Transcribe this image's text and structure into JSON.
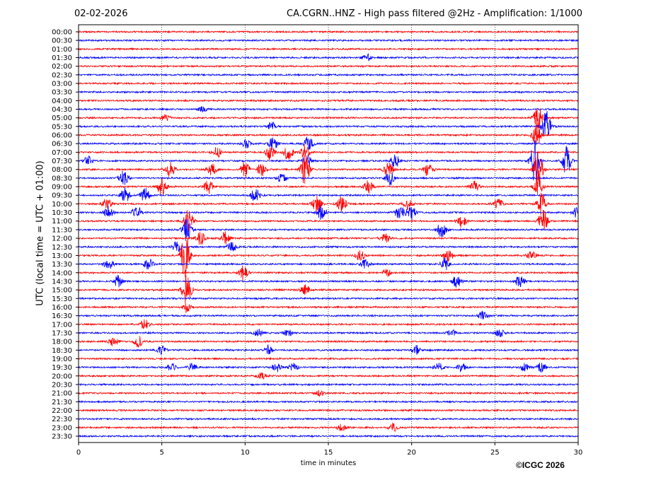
{
  "header": {
    "date": "02-02-2026",
    "title": "CA.CGRN..HNZ - High pass filtered @2Hz - Amplification: 1/1000"
  },
  "footer": {
    "copyright": "©ICGC 2026"
  },
  "colors": {
    "trace_a": "#ff0000",
    "trace_b": "#0000ff",
    "grid": "#000000"
  },
  "chart_data": {
    "type": "line",
    "title": "CA.CGRN..HNZ - High pass filtered @2Hz - Amplification: 1/1000",
    "xlabel": "time in minutes",
    "ylabel": "UTC (local time = UTC + 01:00)",
    "xlim": [
      0,
      30
    ],
    "x_ticks": [
      0,
      5,
      10,
      15,
      20,
      25,
      30
    ],
    "grid": "vertical dotted at 5-minute ticks",
    "traces": [
      {
        "label": "00:00",
        "color": "red",
        "events": []
      },
      {
        "label": "00:30",
        "color": "blue",
        "events": []
      },
      {
        "label": "01:00",
        "color": "red",
        "events": []
      },
      {
        "label": "01:30",
        "color": "blue",
        "events": [
          {
            "x": 17.3,
            "amp": 0.5
          }
        ]
      },
      {
        "label": "02:00",
        "color": "red",
        "events": []
      },
      {
        "label": "02:30",
        "color": "blue",
        "events": []
      },
      {
        "label": "03:00",
        "color": "red",
        "events": []
      },
      {
        "label": "03:30",
        "color": "blue",
        "events": []
      },
      {
        "label": "04:00",
        "color": "red",
        "events": []
      },
      {
        "label": "04:30",
        "color": "blue",
        "events": [
          {
            "x": 7.5,
            "amp": 0.4
          }
        ]
      },
      {
        "label": "05:00",
        "color": "red",
        "events": [
          {
            "x": 5.2,
            "amp": 0.4
          },
          {
            "x": 27.6,
            "amp": 1.5
          }
        ]
      },
      {
        "label": "05:30",
        "color": "blue",
        "events": [
          {
            "x": 11.6,
            "amp": 0.5
          },
          {
            "x": 28.1,
            "amp": 2.0
          }
        ]
      },
      {
        "label": "06:00",
        "color": "red",
        "events": [
          {
            "x": 27.5,
            "amp": 1.5
          }
        ]
      },
      {
        "label": "06:30",
        "color": "blue",
        "events": [
          {
            "x": 10.1,
            "amp": 0.6
          },
          {
            "x": 13.8,
            "amp": 1.0
          },
          {
            "x": 11.7,
            "amp": 1.0
          }
        ]
      },
      {
        "label": "07:00",
        "color": "red",
        "events": [
          {
            "x": 8.3,
            "amp": 0.7
          },
          {
            "x": 11.5,
            "amp": 1.0
          },
          {
            "x": 12.6,
            "amp": 1.0
          },
          {
            "x": 13.6,
            "amp": 1.0
          }
        ]
      },
      {
        "label": "07:30",
        "color": "blue",
        "events": [
          {
            "x": 0.6,
            "amp": 0.6
          },
          {
            "x": 13.7,
            "amp": 0.8
          },
          {
            "x": 19.0,
            "amp": 0.9
          },
          {
            "x": 27.4,
            "amp": 3.0
          },
          {
            "x": 29.3,
            "amp": 2.0
          }
        ]
      },
      {
        "label": "08:00",
        "color": "red",
        "events": [
          {
            "x": 5.5,
            "amp": 1.0
          },
          {
            "x": 8.0,
            "amp": 0.8
          },
          {
            "x": 10.0,
            "amp": 1.0
          },
          {
            "x": 11.0,
            "amp": 0.9
          },
          {
            "x": 13.6,
            "amp": 2.0
          },
          {
            "x": 18.6,
            "amp": 1.0
          },
          {
            "x": 21.0,
            "amp": 0.9
          },
          {
            "x": 27.6,
            "amp": 2.5
          }
        ]
      },
      {
        "label": "08:30",
        "color": "blue",
        "events": [
          {
            "x": 2.7,
            "amp": 1.0
          },
          {
            "x": 12.2,
            "amp": 0.6
          },
          {
            "x": 18.7,
            "amp": 1.0
          }
        ]
      },
      {
        "label": "09:00",
        "color": "red",
        "events": [
          {
            "x": 5.0,
            "amp": 1.2
          },
          {
            "x": 7.8,
            "amp": 1.0
          },
          {
            "x": 17.4,
            "amp": 0.8
          },
          {
            "x": 23.8,
            "amp": 0.8
          },
          {
            "x": 27.6,
            "amp": 1.2
          }
        ]
      },
      {
        "label": "09:30",
        "color": "blue",
        "events": [
          {
            "x": 2.8,
            "amp": 1.0
          },
          {
            "x": 4.0,
            "amp": 0.9
          },
          {
            "x": 10.6,
            "amp": 1.0
          }
        ]
      },
      {
        "label": "10:00",
        "color": "red",
        "events": [
          {
            "x": 1.7,
            "amp": 0.7
          },
          {
            "x": 15.8,
            "amp": 1.0
          },
          {
            "x": 14.3,
            "amp": 1.2
          },
          {
            "x": 19.8,
            "amp": 0.7
          },
          {
            "x": 25.2,
            "amp": 0.7
          },
          {
            "x": 27.8,
            "amp": 1.5
          }
        ]
      },
      {
        "label": "10:30",
        "color": "blue",
        "events": [
          {
            "x": 1.8,
            "amp": 0.8
          },
          {
            "x": 3.5,
            "amp": 1.0
          },
          {
            "x": 14.6,
            "amp": 1.0
          },
          {
            "x": 19.3,
            "amp": 1.0
          },
          {
            "x": 20.0,
            "amp": 1.0
          },
          {
            "x": 29.9,
            "amp": 0.6
          }
        ]
      },
      {
        "label": "11:00",
        "color": "red",
        "events": [
          {
            "x": 6.6,
            "amp": 1.5
          },
          {
            "x": 23.0,
            "amp": 0.8
          },
          {
            "x": 27.9,
            "amp": 1.5
          }
        ]
      },
      {
        "label": "11:30",
        "color": "blue",
        "events": [
          {
            "x": 6.5,
            "amp": 1.5
          },
          {
            "x": 21.8,
            "amp": 1.0
          }
        ]
      },
      {
        "label": "12:00",
        "color": "red",
        "events": [
          {
            "x": 7.3,
            "amp": 1.0
          },
          {
            "x": 8.8,
            "amp": 0.8
          },
          {
            "x": 18.4,
            "amp": 0.6
          }
        ]
      },
      {
        "label": "12:30",
        "color": "blue",
        "events": [
          {
            "x": 5.9,
            "amp": 0.7
          },
          {
            "x": 9.2,
            "amp": 0.6
          }
        ]
      },
      {
        "label": "13:00",
        "color": "red",
        "events": [
          {
            "x": 6.4,
            "amp": 3.0
          },
          {
            "x": 16.9,
            "amp": 0.7
          },
          {
            "x": 22.2,
            "amp": 0.8
          },
          {
            "x": 27.2,
            "amp": 0.6
          }
        ]
      },
      {
        "label": "13:30",
        "color": "blue",
        "events": [
          {
            "x": 1.8,
            "amp": 0.8
          },
          {
            "x": 4.2,
            "amp": 0.7
          },
          {
            "x": 17.2,
            "amp": 0.6
          },
          {
            "x": 22.0,
            "amp": 0.8
          }
        ]
      },
      {
        "label": "14:00",
        "color": "red",
        "events": [
          {
            "x": 9.9,
            "amp": 1.0
          },
          {
            "x": 18.5,
            "amp": 0.5
          }
        ]
      },
      {
        "label": "14:30",
        "color": "blue",
        "events": [
          {
            "x": 2.4,
            "amp": 0.8
          },
          {
            "x": 26.5,
            "amp": 0.8
          },
          {
            "x": 22.7,
            "amp": 0.8
          }
        ]
      },
      {
        "label": "15:00",
        "color": "red",
        "events": [
          {
            "x": 13.6,
            "amp": 0.7
          },
          {
            "x": 6.5,
            "amp": 2.0
          }
        ]
      },
      {
        "label": "15:30",
        "color": "blue",
        "events": []
      },
      {
        "label": "16:00",
        "color": "red",
        "events": [
          {
            "x": 6.5,
            "amp": 0.7
          }
        ]
      },
      {
        "label": "16:30",
        "color": "blue",
        "events": [
          {
            "x": 24.3,
            "amp": 0.6
          }
        ]
      },
      {
        "label": "17:00",
        "color": "red",
        "events": [
          {
            "x": 4.0,
            "amp": 0.7
          }
        ]
      },
      {
        "label": "17:30",
        "color": "blue",
        "events": [
          {
            "x": 10.8,
            "amp": 0.5
          },
          {
            "x": 12.6,
            "amp": 0.5
          },
          {
            "x": 22.4,
            "amp": 0.4
          },
          {
            "x": 25.3,
            "amp": 0.5
          }
        ]
      },
      {
        "label": "18:00",
        "color": "red",
        "events": [
          {
            "x": 2.1,
            "amp": 0.6
          },
          {
            "x": 3.6,
            "amp": 0.7
          }
        ]
      },
      {
        "label": "18:30",
        "color": "blue",
        "events": [
          {
            "x": 5.0,
            "amp": 0.6
          },
          {
            "x": 11.4,
            "amp": 0.6
          },
          {
            "x": 20.3,
            "amp": 0.6
          }
        ]
      },
      {
        "label": "19:00",
        "color": "red",
        "events": []
      },
      {
        "label": "19:30",
        "color": "blue",
        "events": [
          {
            "x": 5.6,
            "amp": 0.5
          },
          {
            "x": 6.8,
            "amp": 0.5
          },
          {
            "x": 11.9,
            "amp": 0.6
          },
          {
            "x": 12.9,
            "amp": 0.5
          },
          {
            "x": 21.6,
            "amp": 0.6
          },
          {
            "x": 23.0,
            "amp": 0.6
          },
          {
            "x": 26.8,
            "amp": 0.5
          },
          {
            "x": 27.8,
            "amp": 0.6
          }
        ]
      },
      {
        "label": "20:00",
        "color": "red",
        "events": [
          {
            "x": 11.0,
            "amp": 0.4
          }
        ]
      },
      {
        "label": "20:30",
        "color": "blue",
        "events": []
      },
      {
        "label": "21:00",
        "color": "red",
        "events": [
          {
            "x": 14.5,
            "amp": 0.4
          }
        ]
      },
      {
        "label": "21:30",
        "color": "blue",
        "events": []
      },
      {
        "label": "22:00",
        "color": "red",
        "events": []
      },
      {
        "label": "22:30",
        "color": "blue",
        "events": []
      },
      {
        "label": "23:00",
        "color": "red",
        "events": [
          {
            "x": 15.8,
            "amp": 0.4
          },
          {
            "x": 18.9,
            "amp": 0.5
          }
        ]
      },
      {
        "label": "23:30",
        "color": "blue",
        "events": []
      }
    ]
  }
}
